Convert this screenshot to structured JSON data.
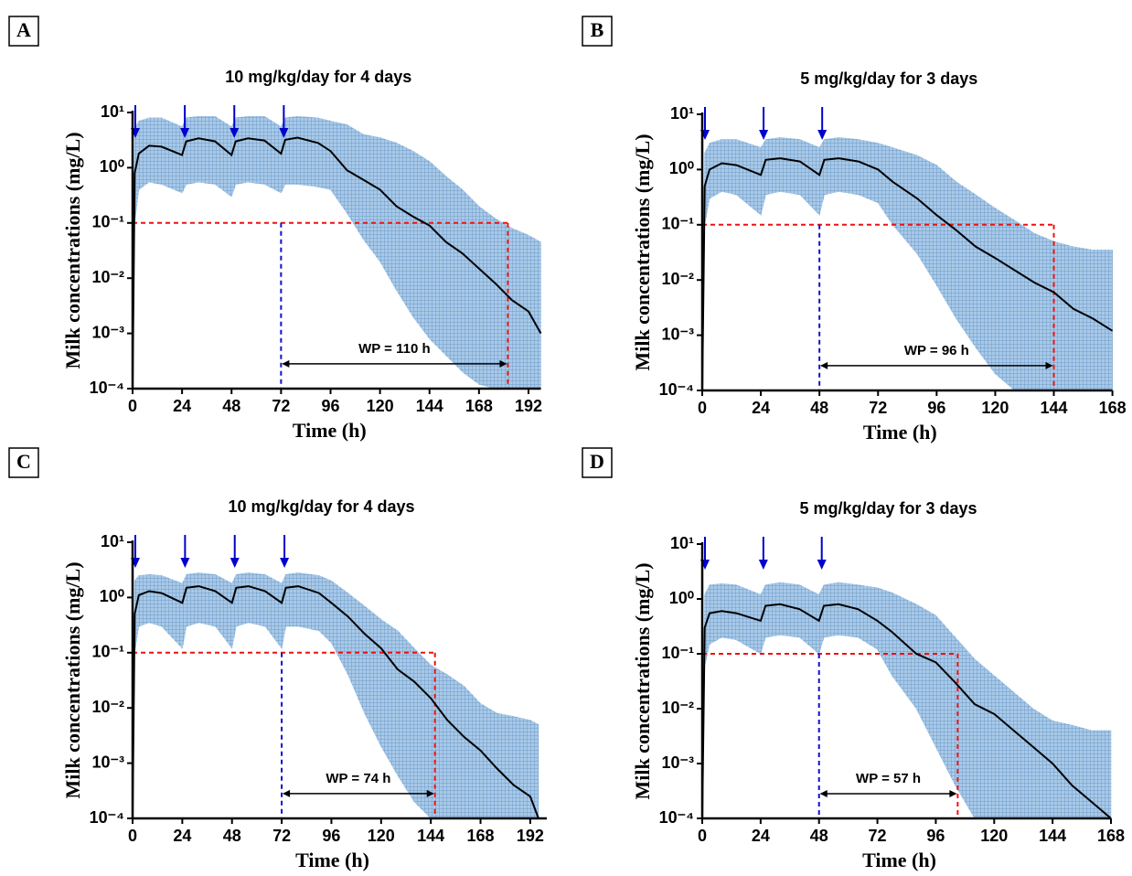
{
  "chart_data": [
    {
      "type": "line",
      "panel_label": "A",
      "title": "10 mg/kg/day for 4 days",
      "xlabel": "Time (h)",
      "ylabel": "Milk concentrations (mg/L)",
      "log_y": true,
      "xlim": [
        0,
        198
      ],
      "ylim": [
        0.0001,
        10
      ],
      "xticks": [
        0,
        24,
        48,
        72,
        96,
        120,
        144,
        168,
        192
      ],
      "yticks": [
        {
          "value": 10,
          "label": "10¹"
        },
        {
          "value": 1,
          "label": "10⁰"
        },
        {
          "value": 0.1,
          "label": "10⁻¹"
        },
        {
          "value": 0.01,
          "label": "10⁻²"
        },
        {
          "value": 0.001,
          "label": "10⁻³"
        },
        {
          "value": 0.0001,
          "label": "10⁻⁴"
        }
      ],
      "x": [
        0,
        1,
        3,
        8,
        14,
        24,
        26,
        32,
        40,
        48,
        50,
        56,
        64,
        72,
        74,
        80,
        90,
        96,
        104,
        112,
        120,
        128,
        136,
        144,
        152,
        160,
        168,
        176,
        184,
        192,
        198
      ],
      "median": {
        "color": "#000000",
        "values": [
          0.0001,
          0.8,
          1.8,
          2.5,
          2.4,
          1.7,
          3.0,
          3.4,
          3.0,
          1.7,
          3.0,
          3.4,
          3.1,
          1.8,
          3.2,
          3.5,
          2.8,
          2.0,
          0.9,
          0.6,
          0.4,
          0.2,
          0.13,
          0.09,
          0.045,
          0.028,
          0.015,
          0.008,
          0.004,
          0.0025,
          0.001
        ]
      },
      "band": {
        "color": "#a8c9e8",
        "upper": [
          0.0001,
          5,
          7,
          8,
          8,
          5.5,
          8,
          8.5,
          8.5,
          5.5,
          8,
          8.5,
          8.5,
          5.5,
          8,
          8.5,
          8,
          7,
          6,
          4,
          3.5,
          2.8,
          2,
          1.3,
          0.7,
          0.4,
          0.2,
          0.12,
          0.08,
          0.06,
          0.045
        ],
        "lower": [
          0.0001,
          0.1,
          0.4,
          0.55,
          0.5,
          0.35,
          0.5,
          0.55,
          0.5,
          0.3,
          0.5,
          0.55,
          0.5,
          0.35,
          0.5,
          0.5,
          0.45,
          0.4,
          0.15,
          0.05,
          0.02,
          0.006,
          0.002,
          0.0008,
          0.0004,
          0.0002,
          0.00012,
          0.0001,
          0.0001,
          0.0001,
          0.0001
        ]
      },
      "dose_times": [
        0,
        24,
        48,
        72
      ],
      "dose_color": "#0000cc",
      "threshold": 0.1,
      "withdrawal_start": 72,
      "withdrawal_end": 182,
      "wp_label": "WP = 110 h"
    },
    {
      "type": "line",
      "panel_label": "B",
      "title": "5 mg/kg/day for 3 days",
      "xlabel": "Time (h)",
      "ylabel": "Milk concentrations (mg/L)",
      "log_y": true,
      "xlim": [
        0,
        168
      ],
      "ylim": [
        0.0001,
        10
      ],
      "xticks": [
        0,
        24,
        48,
        72,
        96,
        120,
        144,
        168
      ],
      "yticks": [
        {
          "value": 10,
          "label": "10¹"
        },
        {
          "value": 1,
          "label": "10⁰"
        },
        {
          "value": 0.1,
          "label": "10⁻¹"
        },
        {
          "value": 0.01,
          "label": "10⁻²"
        },
        {
          "value": 0.001,
          "label": "10⁻³"
        },
        {
          "value": 0.0001,
          "label": "10⁻⁴"
        }
      ],
      "x": [
        0,
        1,
        3,
        8,
        14,
        24,
        26,
        32,
        40,
        48,
        50,
        56,
        64,
        72,
        78,
        88,
        96,
        104,
        112,
        120,
        128,
        136,
        144,
        152,
        160,
        168
      ],
      "median": {
        "color": "#000000",
        "values": [
          0.0001,
          0.5,
          1.0,
          1.3,
          1.2,
          0.8,
          1.5,
          1.6,
          1.4,
          0.8,
          1.5,
          1.6,
          1.4,
          1.0,
          0.6,
          0.3,
          0.15,
          0.08,
          0.04,
          0.025,
          0.015,
          0.009,
          0.006,
          0.003,
          0.002,
          0.0012
        ]
      },
      "band": {
        "color": "#a8c9e8",
        "upper": [
          0.0001,
          2,
          3,
          3.5,
          3.5,
          2.5,
          3.5,
          3.8,
          3.5,
          2.5,
          3.5,
          3.8,
          3.5,
          3,
          2.5,
          1.8,
          1.2,
          0.6,
          0.35,
          0.2,
          0.12,
          0.07,
          0.05,
          0.04,
          0.035,
          0.035
        ],
        "lower": [
          0.0001,
          0.1,
          0.3,
          0.4,
          0.35,
          0.15,
          0.35,
          0.4,
          0.35,
          0.15,
          0.35,
          0.4,
          0.35,
          0.25,
          0.1,
          0.03,
          0.008,
          0.002,
          0.0006,
          0.0002,
          0.0001,
          0.0001,
          0.0001,
          0.0001,
          0.0001,
          0.0001
        ]
      },
      "dose_times": [
        0,
        24,
        48
      ],
      "dose_color": "#0000cc",
      "threshold": 0.1,
      "withdrawal_start": 48,
      "withdrawal_end": 144,
      "wp_label": "WP = 96 h"
    },
    {
      "type": "line",
      "panel_label": "C",
      "title": "10 mg/kg/day for 4 days",
      "xlabel": "Time (h)",
      "ylabel": "Milk concentrations (mg/L)",
      "log_y": true,
      "xlim": [
        0,
        200
      ],
      "ylim": [
        0.0001,
        10
      ],
      "xticks": [
        0,
        24,
        48,
        72,
        96,
        120,
        144,
        168,
        192
      ],
      "yticks": [
        {
          "value": 10,
          "label": "10¹"
        },
        {
          "value": 1,
          "label": "10⁰"
        },
        {
          "value": 0.1,
          "label": "10⁻¹"
        },
        {
          "value": 0.01,
          "label": "10⁻²"
        },
        {
          "value": 0.001,
          "label": "10⁻³"
        },
        {
          "value": 0.0001,
          "label": "10⁻⁴"
        }
      ],
      "x": [
        0,
        1,
        3,
        8,
        14,
        24,
        26,
        32,
        40,
        48,
        50,
        56,
        64,
        72,
        74,
        80,
        90,
        96,
        104,
        112,
        120,
        128,
        136,
        144,
        152,
        160,
        168,
        176,
        184,
        192,
        196
      ],
      "median": {
        "color": "#000000",
        "values": [
          0.0001,
          0.5,
          1.1,
          1.3,
          1.2,
          0.8,
          1.5,
          1.6,
          1.3,
          0.8,
          1.5,
          1.6,
          1.3,
          0.8,
          1.5,
          1.6,
          1.2,
          0.8,
          0.45,
          0.22,
          0.12,
          0.05,
          0.03,
          0.015,
          0.006,
          0.003,
          0.0017,
          0.0008,
          0.0004,
          0.00025,
          0.0001
        ]
      },
      "band": {
        "color": "#a8c9e8",
        "upper": [
          0.0001,
          2,
          2.5,
          2.6,
          2.5,
          1.8,
          2.6,
          2.8,
          2.6,
          1.8,
          2.6,
          2.8,
          2.6,
          1.8,
          2.6,
          2.8,
          2.5,
          2,
          1.2,
          0.7,
          0.4,
          0.25,
          0.12,
          0.06,
          0.04,
          0.025,
          0.012,
          0.008,
          0.007,
          0.006,
          0.005
        ],
        "lower": [
          0.0001,
          0.1,
          0.3,
          0.35,
          0.3,
          0.12,
          0.3,
          0.35,
          0.3,
          0.12,
          0.3,
          0.35,
          0.3,
          0.12,
          0.3,
          0.3,
          0.25,
          0.15,
          0.04,
          0.008,
          0.002,
          0.0006,
          0.0002,
          0.0001,
          0.0001,
          0.0001,
          0.0001,
          0.0001,
          0.0001,
          0.0001,
          0.0001
        ]
      },
      "dose_times": [
        0,
        24,
        48,
        72
      ],
      "dose_color": "#0000cc",
      "threshold": 0.1,
      "withdrawal_start": 72,
      "withdrawal_end": 146,
      "wp_label": "WP = 74 h"
    },
    {
      "type": "line",
      "panel_label": "D",
      "title": "5 mg/kg/day for 3 days",
      "xlabel": "Time (h)",
      "ylabel": "Milk concentrations (mg/L)",
      "log_y": true,
      "xlim": [
        0,
        168
      ],
      "ylim": [
        0.0001,
        10
      ],
      "xticks": [
        0,
        24,
        48,
        72,
        96,
        120,
        144,
        168
      ],
      "yticks": [
        {
          "value": 10,
          "label": "10¹"
        },
        {
          "value": 1,
          "label": "10⁰"
        },
        {
          "value": 0.1,
          "label": "10⁻¹"
        },
        {
          "value": 0.01,
          "label": "10⁻²"
        },
        {
          "value": 0.001,
          "label": "10⁻³"
        },
        {
          "value": 0.0001,
          "label": "10⁻⁴"
        }
      ],
      "x": [
        0,
        1,
        3,
        8,
        14,
        24,
        26,
        32,
        40,
        48,
        50,
        56,
        64,
        72,
        78,
        88,
        96,
        104,
        112,
        120,
        128,
        136,
        144,
        152,
        160,
        168
      ],
      "median": {
        "color": "#000000",
        "values": [
          0.0001,
          0.3,
          0.55,
          0.6,
          0.55,
          0.4,
          0.75,
          0.8,
          0.65,
          0.4,
          0.75,
          0.8,
          0.65,
          0.4,
          0.25,
          0.1,
          0.07,
          0.03,
          0.012,
          0.008,
          0.004,
          0.002,
          0.001,
          0.0004,
          0.0002,
          0.0001
        ]
      },
      "band": {
        "color": "#a8c9e8",
        "upper": [
          0.0001,
          1.2,
          1.8,
          1.9,
          1.8,
          1.2,
          1.8,
          2,
          1.8,
          1.2,
          1.8,
          2,
          1.8,
          1.6,
          1.3,
          0.8,
          0.5,
          0.2,
          0.08,
          0.04,
          0.02,
          0.01,
          0.006,
          0.005,
          0.004,
          0.004
        ],
        "lower": [
          0.0001,
          0.06,
          0.15,
          0.2,
          0.18,
          0.1,
          0.2,
          0.22,
          0.2,
          0.1,
          0.2,
          0.22,
          0.2,
          0.12,
          0.04,
          0.01,
          0.002,
          0.0004,
          0.0001,
          0.0001,
          0.0001,
          0.0001,
          0.0001,
          0.0001,
          0.0001,
          0.0001
        ]
      },
      "dose_times": [
        0,
        24,
        48
      ],
      "dose_color": "#0000cc",
      "threshold": 0.1,
      "withdrawal_start": 48,
      "withdrawal_end": 105,
      "wp_label": "WP = 57 h"
    }
  ]
}
